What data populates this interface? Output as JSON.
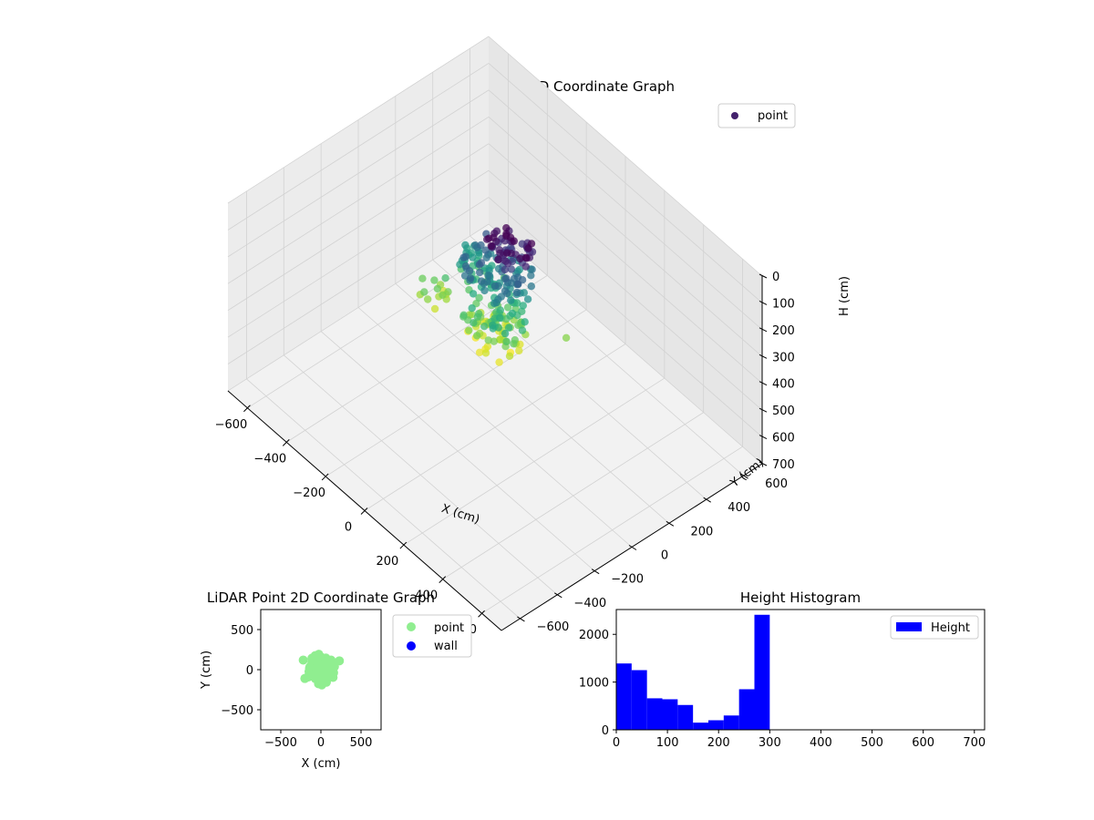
{
  "colors": {
    "pane_side": "#ececec",
    "pane_back": "#e6e6e6",
    "pane_floor": "#f2f2f2",
    "grid": "#d2d2d2",
    "point2d": "#90ee90",
    "wall": "#0000ff",
    "hist_bar": "#0000ff",
    "legend_point3d": "#44226d",
    "viridis": [
      "#440154",
      "#472d7b",
      "#3b528b",
      "#2c728e",
      "#21918c",
      "#28ae80",
      "#5ec962",
      "#addc30",
      "#fde725"
    ]
  },
  "chart_data": [
    {
      "type": "scatter3d",
      "title": "LiDAR Point 3D Coordinate Graph",
      "xlabel": "X (cm)",
      "ylabel": "Y (cm)",
      "zlabel": "H (cm)",
      "xlim": [
        -700,
        700
      ],
      "ylim": [
        -700,
        700
      ],
      "zlim": [
        0,
        700
      ],
      "z_inverted": true,
      "xticks": [
        -600,
        -400,
        -200,
        0,
        200,
        400,
        600
      ],
      "xtick_labels": [
        "−600",
        "−400",
        "−200",
        "0",
        "200",
        "400",
        "600"
      ],
      "yticks": [
        -600,
        -400,
        -200,
        0,
        200,
        400,
        600
      ],
      "ytick_labels": [
        "−600",
        "−400",
        "−200",
        "0",
        "200",
        "400",
        "600"
      ],
      "zticks": [
        0,
        100,
        200,
        300,
        400,
        500,
        600,
        700
      ],
      "ztick_labels": [
        "0",
        "100",
        "200",
        "300",
        "400",
        "500",
        "600",
        "700"
      ],
      "legend": [
        {
          "label": "point"
        }
      ],
      "legend_position": "upper right",
      "colormap": "viridis",
      "point_clusters": [
        {
          "center": [
            40,
            40,
            30
          ],
          "radius": 90,
          "count": 55
        },
        {
          "center": [
            0,
            20,
            130
          ],
          "radius": 140,
          "count": 70
        },
        {
          "center": [
            -120,
            50,
            200
          ],
          "radius": 90,
          "count": 35
        },
        {
          "center": [
            60,
            -60,
            230
          ],
          "radius": 120,
          "count": 60
        },
        {
          "center": [
            60,
            -60,
            280
          ],
          "radius": 110,
          "count": 45
        },
        {
          "center": [
            -200,
            -120,
            260
          ],
          "radius": 60,
          "count": 15
        }
      ],
      "outliers": [
        [
          250,
          120,
          260
        ]
      ]
    },
    {
      "type": "scatter",
      "title": "LiDAR Point 2D Coordinate Graph",
      "xlabel": "X (cm)",
      "ylabel": "Y (cm)",
      "xlim": [
        -750,
        750
      ],
      "ylim": [
        -750,
        750
      ],
      "xticks": [
        -500,
        0,
        500
      ],
      "xtick_labels": [
        "−500",
        "0",
        "500"
      ],
      "yticks": [
        -500,
        0,
        500
      ],
      "ytick_labels": [
        "−500",
        "0",
        "500"
      ],
      "legend": [
        {
          "label": "point"
        },
        {
          "label": "wall"
        }
      ],
      "legend_position": "outside right",
      "point_cloud": {
        "center": [
          10,
          0
        ],
        "radius": 230
      },
      "outliers": [
        [
          230,
          110
        ],
        [
          -200,
          -110
        ],
        [
          -220,
          120
        ]
      ],
      "wall_points": []
    },
    {
      "type": "bar",
      "title": "Height Histogram",
      "legend": [
        {
          "label": "Height"
        }
      ],
      "legend_position": "upper right",
      "xlim": [
        0,
        720
      ],
      "ylim": [
        0,
        2520
      ],
      "xticks": [
        0,
        100,
        200,
        300,
        400,
        500,
        600,
        700
      ],
      "xtick_labels": [
        "0",
        "100",
        "200",
        "300",
        "400",
        "500",
        "600",
        "700"
      ],
      "yticks": [
        0,
        1000,
        2000
      ],
      "ytick_labels": [
        "0",
        "1000",
        "2000"
      ],
      "bin_edges": [
        0,
        30,
        60,
        90,
        120,
        150,
        180,
        210,
        240,
        270,
        300
      ],
      "values": [
        1390,
        1250,
        660,
        640,
        520,
        150,
        200,
        300,
        850,
        2410
      ]
    }
  ]
}
